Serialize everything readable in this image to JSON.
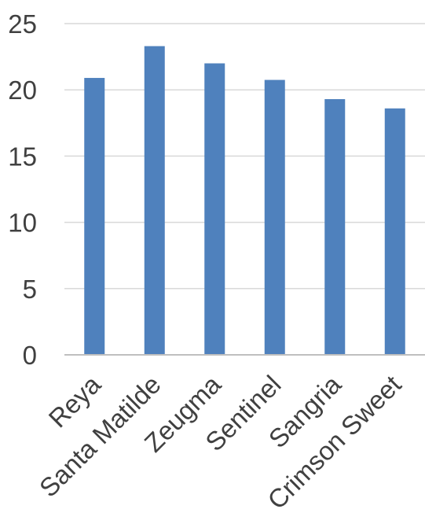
{
  "chart_data": {
    "type": "bar",
    "title": "",
    "xlabel": "",
    "ylabel": "",
    "categories": [
      "Reya",
      "Santa Matilde",
      "Zeugma",
      "Sentinel",
      "Sangria",
      "Crimson Sweet"
    ],
    "values": [
      20.9,
      23.3,
      22.0,
      20.75,
      19.3,
      18.6
    ],
    "ylim": [
      0,
      25
    ],
    "yticks": [
      "0",
      "5",
      "10",
      "15",
      "20",
      "25"
    ],
    "grid": true,
    "legend": "none",
    "colors": {
      "bar": "#4f81bd",
      "grid": "#d9d9d9",
      "axis": "#bfbfbf",
      "text": "#404040"
    }
  }
}
